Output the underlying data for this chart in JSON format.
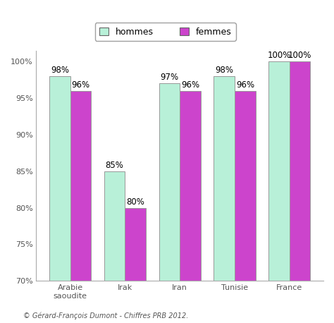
{
  "categories": [
    "Arabie\nsaoudite",
    "Irak",
    "Iran",
    "Tunisie",
    "France"
  ],
  "hommes": [
    98,
    85,
    97,
    98,
    100
  ],
  "femmes": [
    96,
    80,
    96,
    96,
    100
  ],
  "bar_color_hommes": "#b8f0d8",
  "bar_color_femmes": "#cc44cc",
  "bar_edge_color": "#999999",
  "ylim_min": 70,
  "ylim_max": 101.5,
  "yticks": [
    70,
    75,
    80,
    85,
    90,
    95,
    100
  ],
  "ytick_labels": [
    "70%",
    "75%",
    "80%",
    "85%",
    "90%",
    "95%",
    "100%"
  ],
  "legend_hommes": "hommes",
  "legend_femmes": "femmes",
  "footnote": "© Gérard-François Dumont - Chiffres PRB 2012.",
  "bar_width": 0.38,
  "label_fontsize": 8.5,
  "tick_fontsize": 8,
  "footnote_fontsize": 7,
  "legend_fontsize": 9
}
